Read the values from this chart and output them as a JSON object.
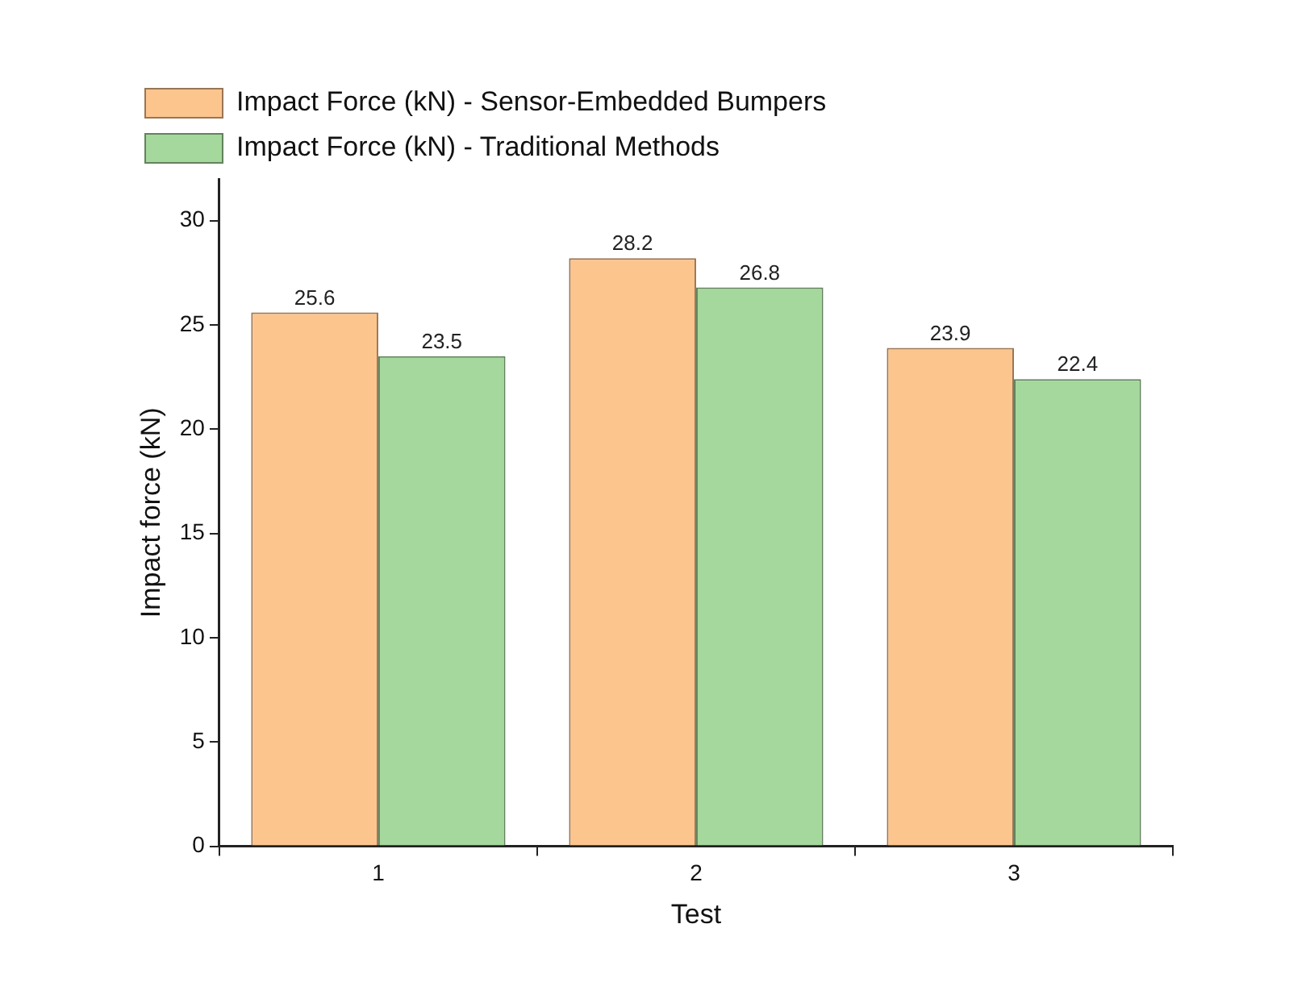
{
  "chart_data": {
    "type": "bar",
    "xlabel": "Test",
    "ylabel": "Impact force (kN)",
    "categories": [
      "1",
      "2",
      "3"
    ],
    "series": [
      {
        "name": "Impact Force (kN) - Sensor-Embedded Bumpers",
        "color": "#fdc58e",
        "values": [
          25.6,
          28.2,
          23.9
        ]
      },
      {
        "name": "Impact Force (kN) - Traditional Methods",
        "color": "#a5d89c",
        "values": [
          23.5,
          26.8,
          22.4
        ]
      }
    ],
    "ylim": [
      0,
      32
    ],
    "yticks": [
      0,
      5,
      10,
      15,
      20,
      25,
      30
    ],
    "grid": false,
    "legend": "top left",
    "data_labels": true
  }
}
